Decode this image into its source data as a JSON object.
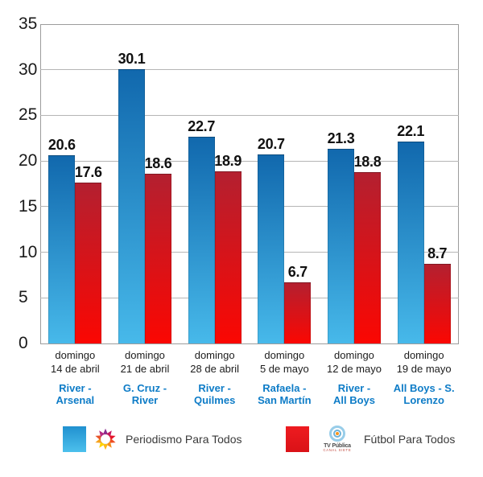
{
  "chart_data": {
    "type": "bar",
    "title": "",
    "xlabel": "",
    "ylabel": "",
    "ylim": [
      0,
      35
    ],
    "ytick_step": 5,
    "grid": true,
    "legend_position": "bottom",
    "categories": [
      {
        "day": "domingo",
        "date": "14 de abril",
        "matchup": "River -\nArsenal"
      },
      {
        "day": "domingo",
        "date": "21 de abril",
        "matchup": "G. Cruz -\nRiver"
      },
      {
        "day": "domingo",
        "date": "28 de abril",
        "matchup": "River -\nQuilmes"
      },
      {
        "day": "domingo",
        "date": "5 de mayo",
        "matchup": "Rafaela -\nSan Martín"
      },
      {
        "day": "domingo",
        "date": "12 de mayo",
        "matchup": "River -\nAll Boys"
      },
      {
        "day": "domingo",
        "date": "19 de mayo",
        "matchup": "All Boys - S.\nLorenzo"
      }
    ],
    "series": [
      {
        "name": "Periodismo Para Todos",
        "values": [
          20.6,
          30.1,
          22.7,
          20.7,
          21.3,
          22.1
        ],
        "color_top": "#1168ad",
        "color_bottom": "#47b9ea"
      },
      {
        "name": "Fútbol Para Todos",
        "values": [
          17.6,
          18.6,
          18.9,
          6.7,
          18.8,
          8.7
        ],
        "color_top": "#b32030",
        "color_bottom": "#fb0702"
      }
    ]
  },
  "legend": {
    "items": [
      {
        "label": "Periodismo Para Todos",
        "channel_icon": "eltrece-sun"
      },
      {
        "label": "Fútbol Para Todos",
        "channel_icon": "tv-publica",
        "channel_name": "TV Pública",
        "channel_tagline": "CANAL SIETE"
      }
    ]
  },
  "colors": {
    "blue_bar_top": "#1168ad",
    "blue_bar_bottom": "#47b9ea",
    "red_bar_top": "#b32030",
    "red_bar_bottom": "#fb0702",
    "matchup_text": "#0e7cc7",
    "gridline": "#b5b5b5",
    "text": "#1a1a1a"
  }
}
